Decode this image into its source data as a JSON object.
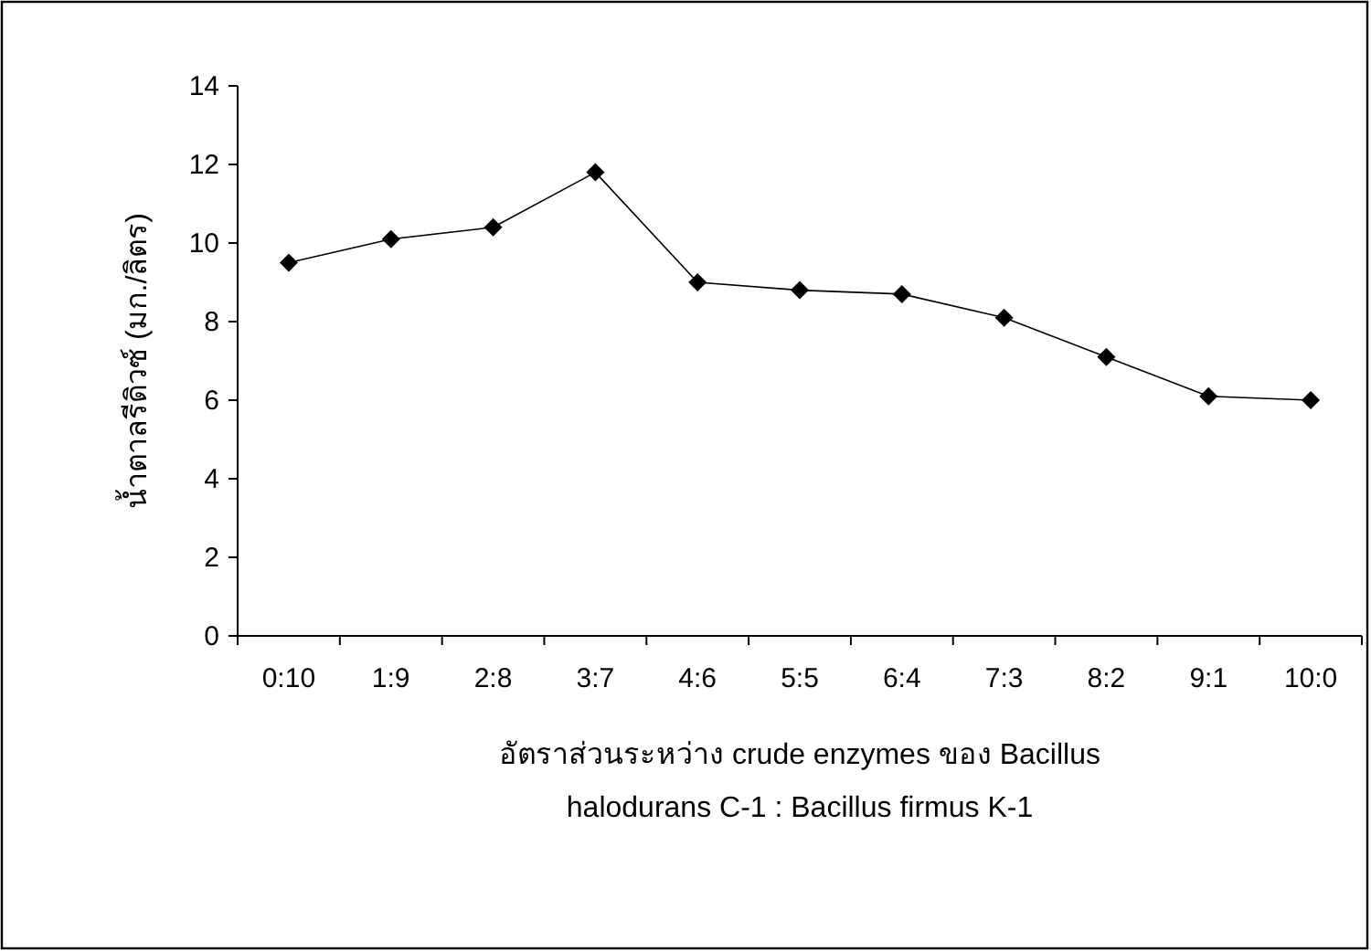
{
  "chart_data": {
    "type": "line",
    "xlabel": "อัตราส่วนระหว่าง crude enzymes ของ Bacillus halodurans C-1 : Bacillus firmus K-1",
    "ylabel": "น้ำตาลรีดิวซ์ (มก./ลิตร)",
    "categories": [
      "0:10",
      "1:9",
      "2:8",
      "3:7",
      "4:6",
      "5:5",
      "6:4",
      "7:3",
      "8:2",
      "9:1",
      "10:0"
    ],
    "series": [
      {
        "color": "#000000",
        "values": [
          9.5,
          10.1,
          10.4,
          11.8,
          9.0,
          8.8,
          8.7,
          8.1,
          7.1,
          6.1,
          6.0
        ]
      }
    ],
    "ylim": [
      0,
      14
    ],
    "yticks": [
      0,
      2,
      4,
      6,
      8,
      10,
      12,
      14
    ],
    "marker": "diamond",
    "line_style": "solid",
    "grid": false
  }
}
